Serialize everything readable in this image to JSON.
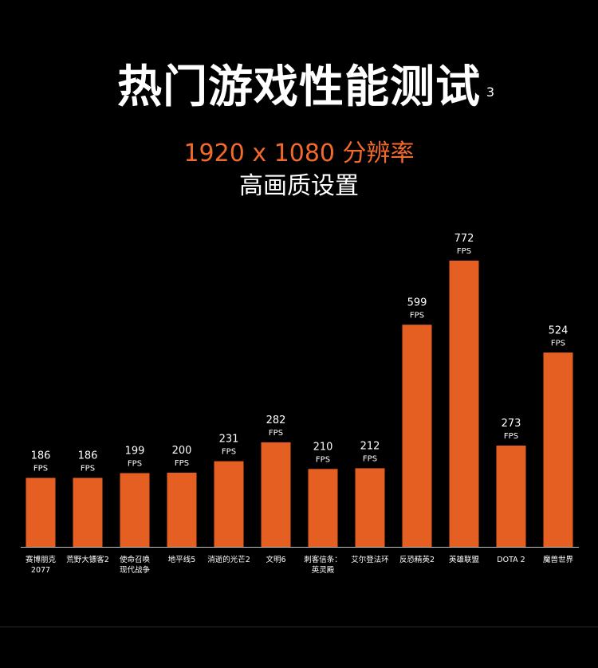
{
  "header": {
    "title": "热门游戏性能测试",
    "footnote": "3",
    "resolution": "1920 x 1080 分辨率",
    "quality": "高画质设置"
  },
  "colors": {
    "background": "#000000",
    "bar": "#e55f22",
    "accent": "#f26a2a",
    "text": "#ffffff",
    "axis": "#bfbfbf"
  },
  "chart_data": {
    "type": "bar",
    "title": "热门游戏性能测试",
    "subtitle": "1920 x 1080 分辨率 高画质设置",
    "xlabel": "",
    "ylabel": "FPS",
    "unit": "FPS",
    "ylim": [
      0,
      800
    ],
    "grid": false,
    "categories": [
      [
        "赛博朋克",
        "2077"
      ],
      [
        "荒野大镖客2"
      ],
      [
        "使命召唤",
        "现代战争"
      ],
      [
        "地平线5"
      ],
      [
        "消逝的光芒2"
      ],
      [
        "文明6"
      ],
      [
        "刺客信条：",
        "英灵殿"
      ],
      [
        "艾尔登法环"
      ],
      [
        "反恐精英2"
      ],
      [
        "英雄联盟"
      ],
      [
        "DOTA 2"
      ],
      [
        "魔兽世界"
      ]
    ],
    "values": [
      186,
      186,
      199,
      200,
      231,
      282,
      210,
      212,
      599,
      772,
      273,
      524
    ]
  }
}
